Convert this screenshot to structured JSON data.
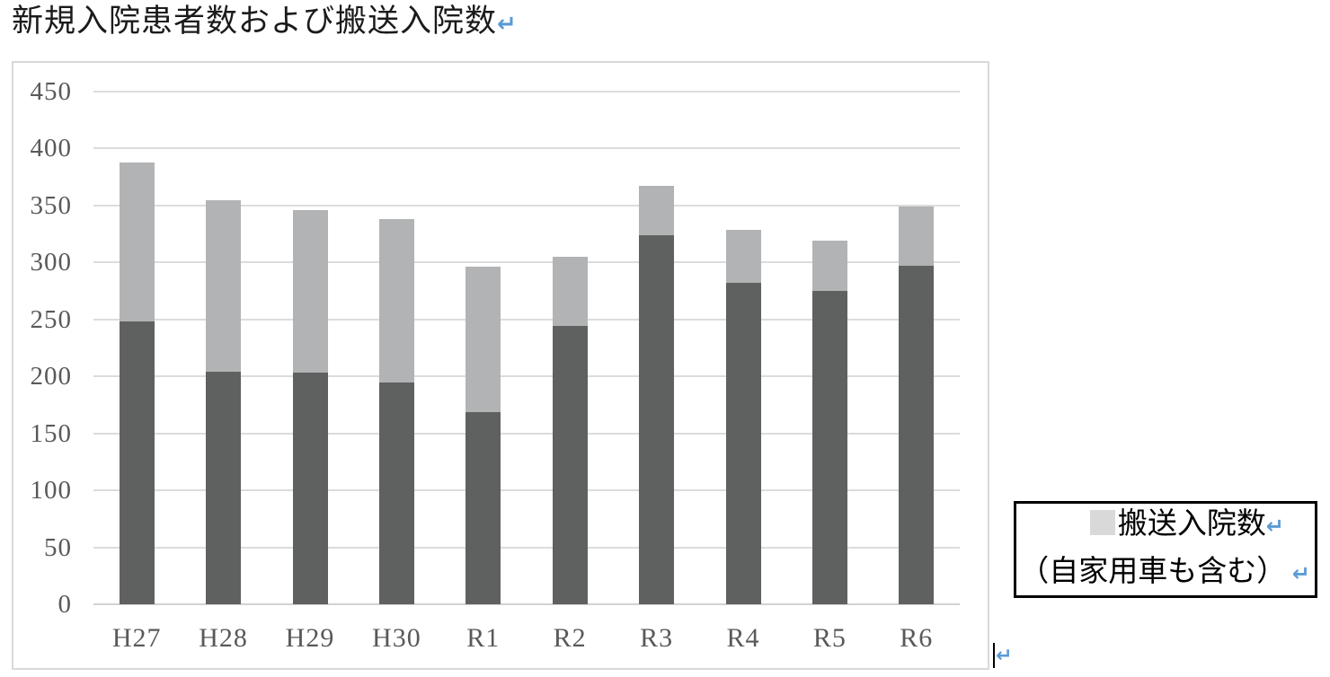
{
  "doc": {
    "title": "新規入院患者数および搬送入院数",
    "paragraph_mark": "↵"
  },
  "legend": {
    "line1": "搬送入院数",
    "line2": "（自家用車も含む）",
    "swatch_color": "#d9d9d9"
  },
  "chart_data": {
    "type": "bar",
    "stacked": true,
    "title": "新規入院患者数および搬送入院数",
    "categories": [
      "H27",
      "H28",
      "H29",
      "H30",
      "R1",
      "R2",
      "R3",
      "R4",
      "R5",
      "R6"
    ],
    "series": [
      {
        "name": "",
        "color": "#5f6060",
        "values": [
          248,
          204,
          203,
          195,
          169,
          244,
          324,
          282,
          275,
          297
        ]
      },
      {
        "name": "搬送入院数（自家用車も含む）",
        "color": "#b2b3b4",
        "values": [
          140,
          151,
          143,
          143,
          127,
          61,
          43,
          47,
          44,
          52
        ]
      }
    ],
    "stack_totals": [
      388,
      355,
      346,
      338,
      296,
      305,
      367,
      329,
      319,
      349
    ],
    "xlabel": "",
    "ylabel": "",
    "ylim": [
      0,
      450
    ],
    "ytick_step": 50,
    "grid": true,
    "legend_position": "right-floating-box"
  },
  "colors": {
    "gridline": "#dcdcdc",
    "axis_line": "#d2d2d2",
    "axis_label": "#595959",
    "frame_border": "#d9d9d9",
    "legend_border": "#000000",
    "paragraph_mark": "#5b9bd5",
    "bar_dark": "#5f6060",
    "bar_light": "#b2b3b4"
  }
}
